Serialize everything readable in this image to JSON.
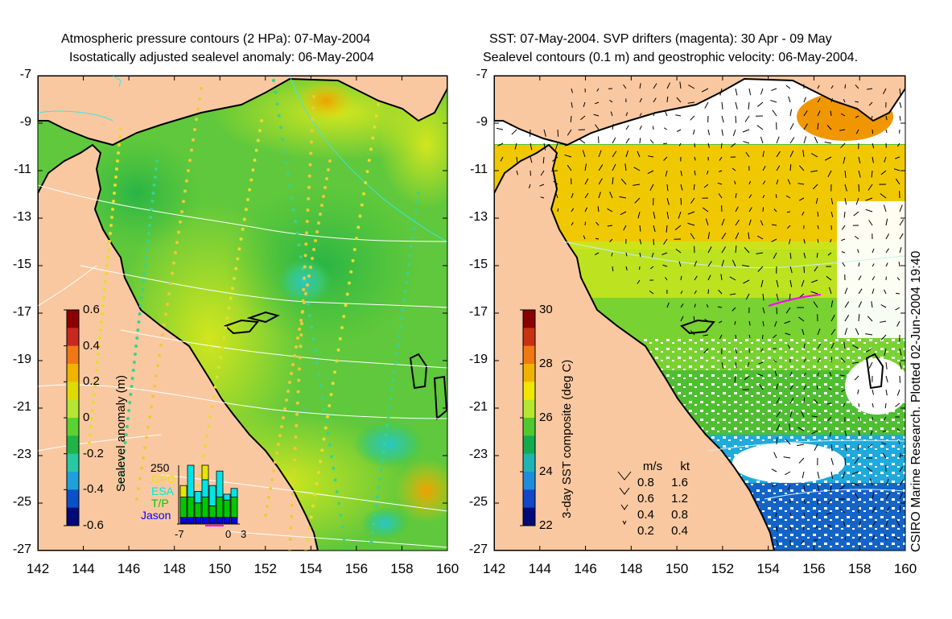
{
  "left_panel": {
    "title_line1": "Atmospheric pressure contours (2 HPa): 07-May-2004",
    "title_line2": "Isostatically adjusted sealevel anomaly: 06-May-2004",
    "colorbar": {
      "label": "Sealevel anomaly (m)",
      "ticks": [
        "0.6",
        "0.4",
        "0.2",
        "0",
        "-0.2",
        "-0.4",
        "-0.6"
      ],
      "colors": [
        "#8b0000",
        "#c8281e",
        "#f07814",
        "#f0b400",
        "#dcdc00",
        "#b4e632",
        "#5ad232",
        "#1eb446",
        "#28c8a0",
        "#1ea0dc",
        "#0a50c8",
        "#000a78"
      ]
    },
    "histogram": {
      "max_label": "250",
      "legend": [
        {
          "name": "GFO",
          "color": "#e6e600"
        },
        {
          "name": "ESA",
          "color": "#00e6e6"
        },
        {
          "name": "T/P",
          "color": "#00c800"
        },
        {
          "name": "Jason",
          "color": "#0000ff"
        }
      ],
      "x_ticks": [
        "-7",
        "0",
        "3"
      ],
      "values": [
        {
          "gfo": 0.2,
          "esa": 0.0,
          "tp": 0.35,
          "jason": 0.1
        },
        {
          "gfo": 0.0,
          "esa": 0.55,
          "tp": 0.35,
          "jason": 0.1
        },
        {
          "gfo": 0.0,
          "esa": 0.2,
          "tp": 0.25,
          "jason": 0.1
        },
        {
          "gfo": 0.25,
          "esa": 0.3,
          "tp": 0.35,
          "jason": 0.1
        },
        {
          "gfo": 0.0,
          "esa": 0.35,
          "tp": 0.2,
          "jason": 0.1
        },
        {
          "gfo": 0.0,
          "esa": 0.45,
          "tp": 0.35,
          "jason": 0.1
        },
        {
          "gfo": 0.0,
          "esa": 0.1,
          "tp": 0.3,
          "jason": 0.1
        },
        {
          "gfo": 0.0,
          "esa": 0.15,
          "tp": 0.35,
          "jason": 0.1
        }
      ]
    }
  },
  "right_panel": {
    "title_line1": "SST: 07-May-2004. SVP drifters (magenta): 30 Apr - 09 May",
    "title_line2": "Sealevel contours (0.1 m) and geostrophic velocity: 06-May-2004.",
    "colorbar": {
      "label": "3-day SST composite (deg C)",
      "ticks": [
        "30",
        "28",
        "26",
        "24",
        "22"
      ],
      "colors": [
        "#8b0000",
        "#c83214",
        "#f07814",
        "#f0b400",
        "#f0e600",
        "#b4e632",
        "#50c832",
        "#14aa50",
        "#1eb4b4",
        "#1e8cdc",
        "#1446c8",
        "#000a78"
      ]
    },
    "velocity_legend": {
      "header_ms": "m/s",
      "header_kt": "kt",
      "rows": [
        {
          "ms": "0.8",
          "kt": "1.6"
        },
        {
          "ms": "0.6",
          "kt": "1.2"
        },
        {
          "ms": "0.4",
          "kt": "0.8"
        },
        {
          "ms": "0.2",
          "kt": "0.4"
        }
      ]
    }
  },
  "axes": {
    "lon_range": [
      142,
      160
    ],
    "lat_range": [
      -27,
      -7
    ],
    "lon_ticks": [
      "142",
      "144",
      "146",
      "148",
      "150",
      "152",
      "154",
      "156",
      "158",
      "160"
    ],
    "lat_ticks": [
      "-7",
      "-9",
      "-11",
      "-13",
      "-15",
      "-17",
      "-19",
      "-21",
      "-23",
      "-25",
      "-27"
    ]
  },
  "credit": "CSIRO Marine Research. Plotted 02-Jun-2004 19:40",
  "colors": {
    "land": "#fac8a0",
    "ocean_green": "#64c832",
    "ocean_yellow": "#c8e61e",
    "contour": "#ffffff"
  }
}
